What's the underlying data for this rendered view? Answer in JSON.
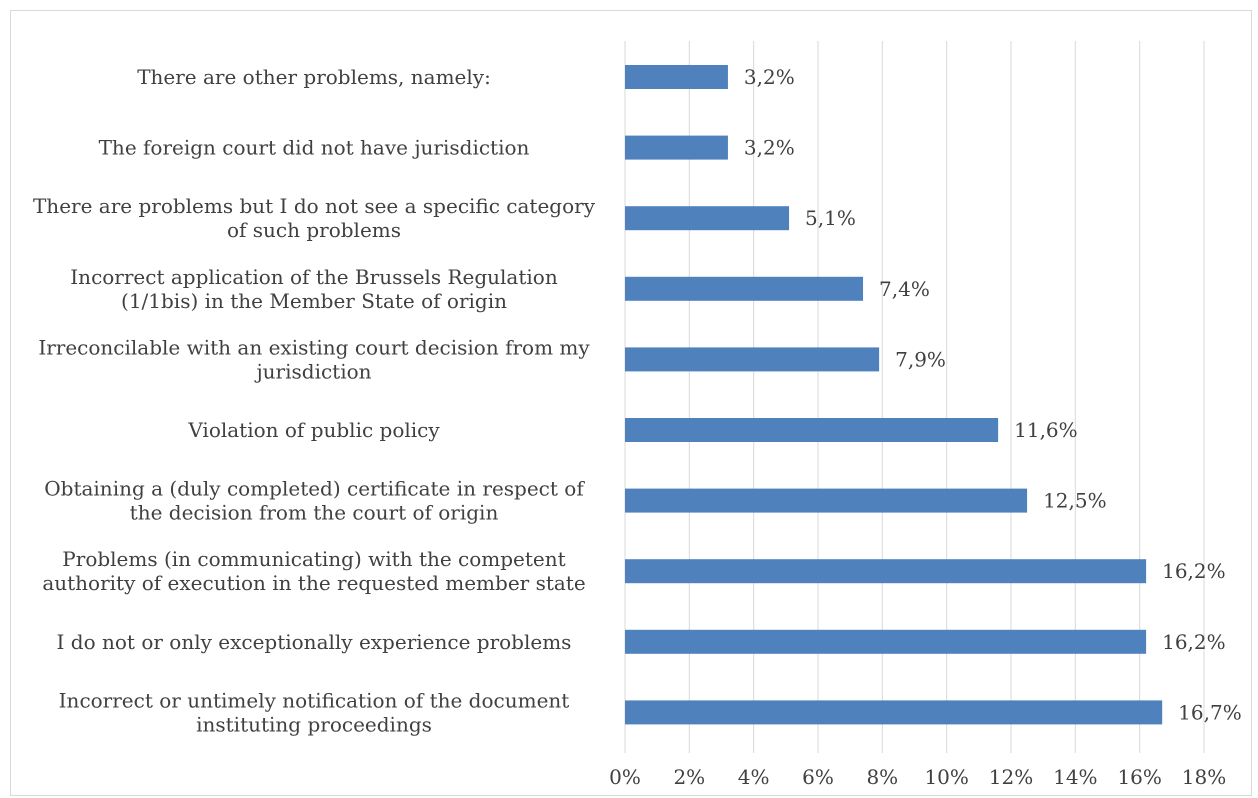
{
  "chart_data": {
    "type": "bar",
    "orientation": "horizontal",
    "categories": [
      "There are other problems, namely:",
      "The foreign court did not have jurisdiction",
      "There are problems but I do not see a specific category of such problems",
      "Incorrect application of the Brussels Regulation (1/1bis) in the Member State of origin",
      "Irreconcilable with an existing court decision from my jurisdiction",
      "Violation of public policy",
      "Obtaining a (duly completed) certificate in respect of the decision from the court of origin",
      "Problems (in communicating) with the competent authority of execution in the requested member state",
      "I do not or only exceptionally experience problems",
      "Incorrect or untimely notification of the document instituting proceedings"
    ],
    "category_lines": [
      [
        "There are other problems, namely:"
      ],
      [
        "The foreign court did not have jurisdiction"
      ],
      [
        "There are problems but I do not see a specific category",
        "of such problems"
      ],
      [
        "Incorrect application of the Brussels Regulation",
        "(1/1bis) in the Member State of origin"
      ],
      [
        "Irreconcilable with an existing court decision from my",
        "jurisdiction"
      ],
      [
        "Violation of public policy"
      ],
      [
        "Obtaining a (duly completed) certificate in respect of",
        "the decision from the court of origin"
      ],
      [
        "Problems (in communicating) with the competent",
        "authority of execution in the requested member state"
      ],
      [
        "I do not or only exceptionally experience problems"
      ],
      [
        "Incorrect or untimely notification of the document",
        "instituting proceedings"
      ]
    ],
    "values": [
      3.2,
      3.2,
      5.1,
      7.4,
      7.9,
      11.6,
      12.5,
      16.2,
      16.2,
      16.7
    ],
    "data_labels": [
      "3,2%",
      "3,2%",
      "5,1%",
      "7,4%",
      "7,9%",
      "11,6%",
      "12,5%",
      "16,2%",
      "16,2%",
      "16,7%"
    ],
    "x_ticks": [
      0,
      2,
      4,
      6,
      8,
      10,
      12,
      14,
      16,
      18
    ],
    "x_tick_labels": [
      "0%",
      "2%",
      "4%",
      "6%",
      "8%",
      "10%",
      "12%",
      "14%",
      "16%",
      "18%"
    ],
    "xlim": [
      0,
      18
    ],
    "title": "",
    "xlabel": "",
    "ylabel": "",
    "grid": true,
    "legend": "none",
    "bar_color": "#4f81bd",
    "grid_color": "#d9d9d9",
    "text_color": "#404040"
  }
}
